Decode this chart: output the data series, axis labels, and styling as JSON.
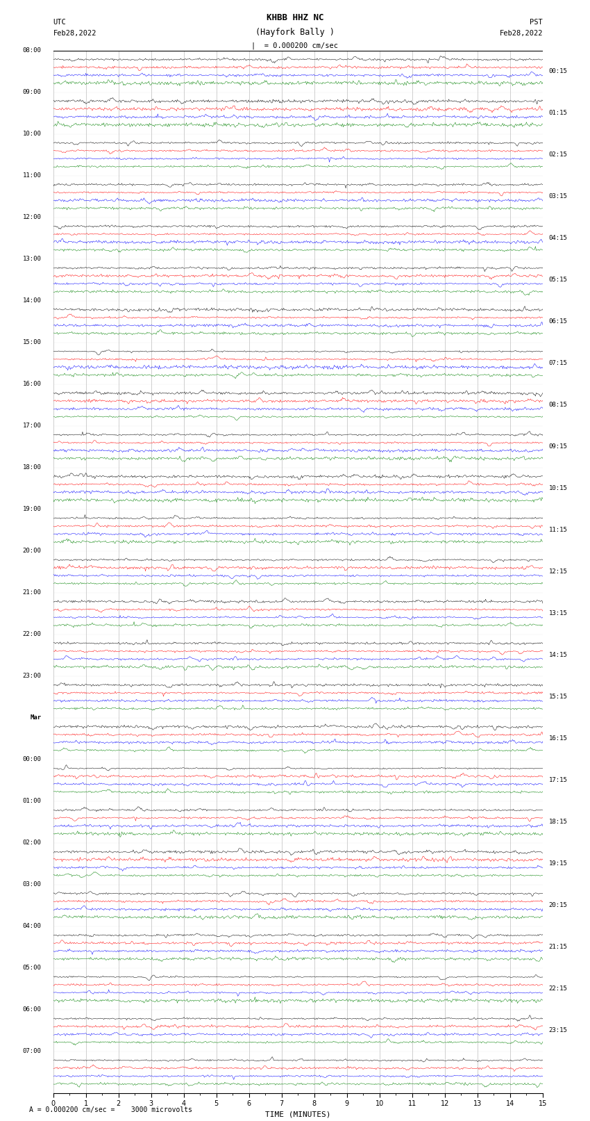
{
  "title_line1": "KHBB HHZ NC",
  "title_line2": "(Hayfork Bally )",
  "scale_label": "= 0.000200 cm/sec",
  "xlabel": "TIME (MINUTES)",
  "utc_label": "UTC",
  "utc_date": "Feb28,2022",
  "pst_label": "PST",
  "pst_date": "Feb28,2022",
  "footer": "A = 0.000200 cm/sec =    3000 microvolts",
  "background_color": "#ffffff",
  "trace_colors": [
    "#000000",
    "#ff0000",
    "#0000ff",
    "#008000"
  ],
  "grid_color": "#888888",
  "left_times": [
    "08:00",
    "09:00",
    "10:00",
    "11:00",
    "12:00",
    "13:00",
    "14:00",
    "15:00",
    "16:00",
    "17:00",
    "18:00",
    "19:00",
    "20:00",
    "21:00",
    "22:00",
    "23:00",
    "Mar",
    "00:00",
    "01:00",
    "02:00",
    "03:00",
    "04:00",
    "05:00",
    "06:00",
    "07:00"
  ],
  "right_times": [
    "00:15",
    "01:15",
    "02:15",
    "03:15",
    "04:15",
    "05:15",
    "06:15",
    "07:15",
    "08:15",
    "09:15",
    "10:15",
    "11:15",
    "12:15",
    "13:15",
    "14:15",
    "15:15",
    "16:15",
    "17:15",
    "18:15",
    "19:15",
    "20:15",
    "21:15",
    "22:15",
    "23:15"
  ],
  "n_rows": 25,
  "traces_per_row": 4,
  "n_minutes": 15,
  "samples_per_minute": 40,
  "noise_scale": [
    0.35,
    0.25,
    0.2,
    0.18
  ],
  "burst_prob": 0.03,
  "burst_scale": [
    1.2,
    0.8,
    0.6,
    0.5
  ],
  "seed": 42
}
